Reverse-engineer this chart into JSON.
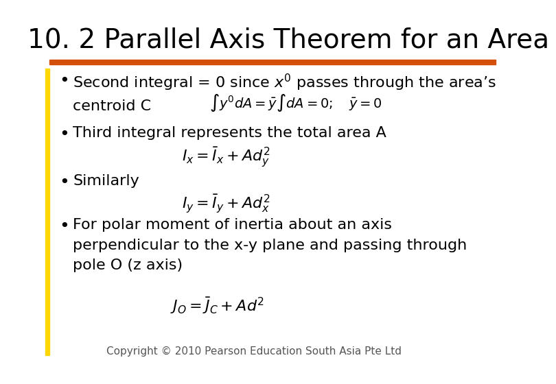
{
  "title": "10. 2 Parallel Axis Theorem for an Area",
  "title_fontsize": 28,
  "title_color": "#000000",
  "background_color": "#ffffff",
  "orange_bar_color": "#D4500A",
  "yellow_bar_color": "#FFD700",
  "bullet1_text": "Second integral = 0 since $x'$ passes through the area’s\ncentroid C",
  "bullet1_formula": "$\\int y'dA = \\bar{y}\\int dA = 0; \\quad \\bar{y} = 0$",
  "bullet2_text": "Third integral represents the total area A",
  "bullet2_formula": "$I_x = \\bar{I}_x + Ad_y^2$",
  "bullet3_text": "Similarly",
  "bullet3_formula": "$I_y = \\bar{I}_y + Ad_x^2$",
  "bullet4_text": "For polar moment of inertia about an axis\nperpendicular to the x-y plane and passing through\npole O (z axis)",
  "bullet4_formula": "$J_O = \\bar{J}_C + Ad^2$",
  "copyright": "Copyright © 2010 Pearson Education South Asia Pte Ltd",
  "copyright_fontsize": 11,
  "text_fontsize": 16,
  "formula_fontsize": 16,
  "bullet_fontsize": 16
}
